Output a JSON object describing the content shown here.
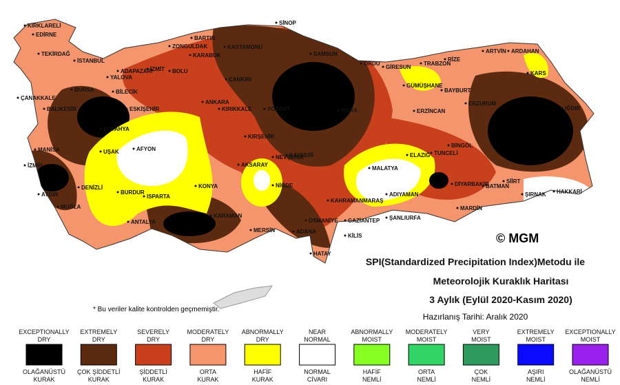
{
  "map": {
    "copyright": "© MGM",
    "note": "* Bu veriler kalite kontrolden geçmemiştir.",
    "cities": [
      "KIRKLARELİ",
      "EDİRNE",
      "TEKİRDAĞ",
      "İSTANBUL",
      "ÇANAKKALE",
      "BALIKESİR",
      "BURSA",
      "BİLECİK",
      "ADAPAZARI",
      "İZMİT",
      "BOLU",
      "YALOVA",
      "ZONGULDAK",
      "BARTIN",
      "KARABÜK",
      "KASTAMONU",
      "SİNOP",
      "SAMSUN",
      "ORDU",
      "GİRESUN",
      "TRABZON",
      "RİZE",
      "ARTVİN",
      "ARDAHAN",
      "KARS",
      "IĞDIR",
      "ERZURUM",
      "BAYBURT",
      "GÜMÜŞHANE",
      "ERZİNCAN",
      "SİVAS",
      "YOZGAT",
      "ÇANKIRI",
      "KIRIKKALE",
      "ANKARA",
      "ESKİŞEHİR",
      "KÜTAHYA",
      "MANİSA",
      "İZMİR",
      "AYDIN",
      "MUĞLA",
      "DENİZLİ",
      "UŞAK",
      "AFYON",
      "BURDUR",
      "ISPARTA",
      "ANTALYA",
      "KONYA",
      "KARAMAN",
      "AKSARAY",
      "NİĞDE",
      "NEVŞEHİR",
      "KIRŞEHİR",
      "KAYSERİ",
      "KAHRAMANMARAŞ",
      "OSMANİYE",
      "ADANA",
      "MERSİN",
      "HATAY",
      "GAZİANTEP",
      "KİLİS",
      "ŞANLIURFA",
      "ADIYAMAN",
      "MALATYA",
      "ELAZIĞ",
      "TUNCELİ",
      "BİNGÖL",
      "DİYARBAKIR",
      "BATMAN",
      "SİİRT",
      "MARDİN",
      "ŞIRNAK",
      "HAKKARİ"
    ]
  },
  "title": {
    "lines": [
      "SPI(Standardized Precipitation Index)Metodu ile",
      "Meteorolojik Kuraklık Haritası",
      "3 Aylık (Eylül 2020-Kasım 2020)"
    ],
    "date": "Hazırlanış Tarihi: Aralık 2020"
  },
  "legend": [
    {
      "en": [
        "EXCEPTIONALLY",
        "DRY"
      ],
      "tr": [
        "OLAĞANÜSTÜ",
        "KURAK"
      ],
      "color": "#000000"
    },
    {
      "en": [
        "EXTREMELY",
        "DRY"
      ],
      "tr": [
        "ÇOK ŞİDDETLİ",
        "KURAK"
      ],
      "color": "#5c2a10"
    },
    {
      "en": [
        "SEVERELY",
        "DRY"
      ],
      "tr": [
        "ŞİDDETLİ",
        "KURAK"
      ],
      "color": "#c8401c"
    },
    {
      "en": [
        "MODERATELY",
        "DRY"
      ],
      "tr": [
        "ORTA",
        "KURAK"
      ],
      "color": "#f4956e"
    },
    {
      "en": [
        "ABNORMALLY",
        "DRY"
      ],
      "tr": [
        "HAFİF",
        "KURAK"
      ],
      "color": "#ffff00"
    },
    {
      "en": [
        "NEAR",
        "NORMAL"
      ],
      "tr": [
        "NORMAL",
        "CİVARI"
      ],
      "color": "#ffffff"
    },
    {
      "en": [
        "ABNORMALLY",
        "MOIST"
      ],
      "tr": [
        "HAFİF",
        "NEMLİ"
      ],
      "color": "#88ff22"
    },
    {
      "en": [
        "MODERATELY",
        "MOIST"
      ],
      "tr": [
        "ORTA",
        "NEMLİ"
      ],
      "color": "#33d466"
    },
    {
      "en": [
        "VERY",
        "MOIST"
      ],
      "tr": [
        "ÇOK",
        "NEMLİ"
      ],
      "color": "#2e9a5e"
    },
    {
      "en": [
        "EXTREMELY",
        "MOIST"
      ],
      "tr": [
        "AŞIRI",
        "NEMLİ"
      ],
      "color": "#0a0aff"
    },
    {
      "en": [
        "EXCEPTIONALLY",
        "MOIST"
      ],
      "tr": [
        "OLAĞANÜSTÜ",
        "NEMLİ"
      ],
      "color": "#9a22f0"
    }
  ]
}
